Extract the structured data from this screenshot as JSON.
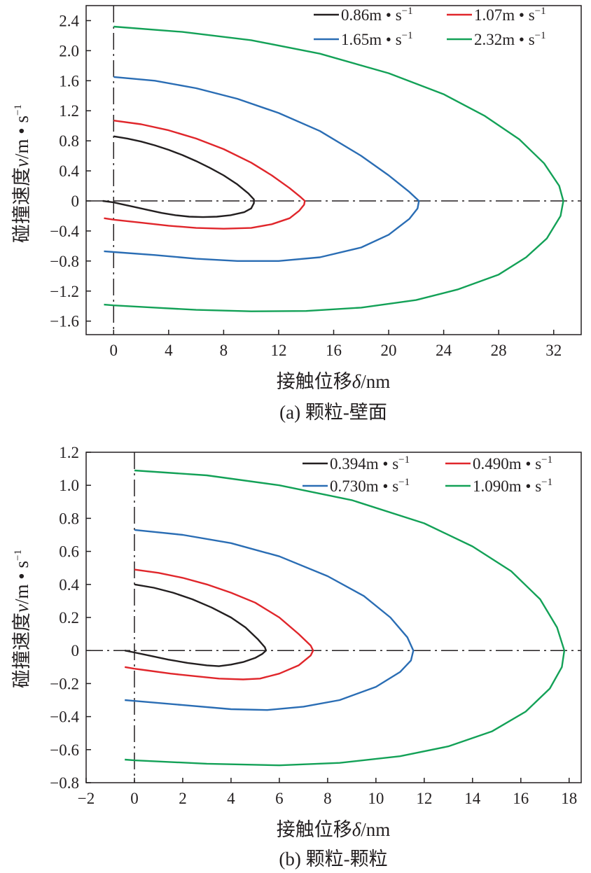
{
  "figure": {
    "colors": {
      "black": "#231f20",
      "red": "#e0262b",
      "blue": "#2a6db4",
      "green": "#13a157",
      "axis": "#231f20"
    }
  },
  "chart_data": [
    {
      "id": "a",
      "type": "line",
      "title": "(a) 颗粒-壁面",
      "xlabel_text": "接触位移",
      "xlabel_symbol": "δ",
      "xlabel_unit": "/nm",
      "ylabel_text": "碰撞速度",
      "ylabel_symbol": "v",
      "ylabel_unit": "/m • s",
      "ylabel_exp": "−1",
      "xlim": [
        -2,
        34
      ],
      "ylim": [
        -1.78,
        2.6
      ],
      "x_ticks": [
        0,
        4,
        8,
        12,
        16,
        20,
        24,
        28,
        32
      ],
      "x_tick_labels": [
        "0",
        "4",
        "8",
        "12",
        "16",
        "20",
        "24",
        "28",
        "32"
      ],
      "y_ticks": [
        2.4,
        2.0,
        1.6,
        1.2,
        0.8,
        0.4,
        0,
        -0.4,
        -0.8,
        -1.2,
        -1.6
      ],
      "y_tick_labels": [
        "2.4",
        "2.0",
        "1.6",
        "1.2",
        "0.8",
        "0.4",
        "0",
        "−0.4",
        "−0.8",
        "−1.2",
        "−1.6"
      ],
      "legend_position": "top-right",
      "legend_unit": "m • s",
      "legend_exp": "−1",
      "series": [
        {
          "name": "0.86",
          "color": "#231f20",
          "x": [
            0,
            1,
            2,
            3,
            4,
            5,
            6,
            7,
            8,
            9,
            9.8,
            10.2,
            10.2,
            10,
            9.5,
            8.5,
            7.5,
            6.5,
            5.5,
            4.5,
            3.5,
            2.5,
            1.5,
            0.5,
            0,
            -0.8
          ],
          "y": [
            0.86,
            0.83,
            0.79,
            0.74,
            0.68,
            0.61,
            0.53,
            0.44,
            0.34,
            0.22,
            0.1,
            0.02,
            -0.03,
            -0.1,
            -0.15,
            -0.19,
            -0.21,
            -0.215,
            -0.21,
            -0.19,
            -0.16,
            -0.12,
            -0.08,
            -0.04,
            -0.02,
            0
          ]
        },
        {
          "name": "1.07",
          "color": "#e0262b",
          "x": [
            0,
            2,
            4,
            6,
            8,
            10,
            11.5,
            12.8,
            13.6,
            13.9,
            13.85,
            13.5,
            12.8,
            11.5,
            10,
            8,
            6,
            4,
            2,
            0,
            -0.7
          ],
          "y": [
            1.07,
            1.02,
            0.94,
            0.83,
            0.69,
            0.51,
            0.34,
            0.17,
            0.05,
            0,
            -0.05,
            -0.13,
            -0.23,
            -0.31,
            -0.36,
            -0.37,
            -0.36,
            -0.33,
            -0.29,
            -0.25,
            -0.23
          ]
        },
        {
          "name": "1.65",
          "color": "#2a6db4",
          "x": [
            0,
            3,
            6,
            9,
            12,
            15,
            18,
            20,
            21.5,
            22.2,
            22.1,
            21.5,
            20,
            18,
            15,
            12,
            9,
            6,
            3,
            0,
            -0.7
          ],
          "y": [
            1.65,
            1.6,
            1.5,
            1.36,
            1.17,
            0.93,
            0.6,
            0.34,
            0.12,
            0,
            -0.1,
            -0.24,
            -0.45,
            -0.62,
            -0.75,
            -0.8,
            -0.8,
            -0.77,
            -0.72,
            -0.68,
            -0.67
          ]
        },
        {
          "name": "2.32",
          "color": "#13a157",
          "x": [
            0,
            5,
            10,
            15,
            20,
            24,
            27,
            29.5,
            31.3,
            32.4,
            32.7,
            32.5,
            31.5,
            30,
            28,
            25,
            22,
            18,
            14,
            10,
            6,
            3,
            0,
            -0.7
          ],
          "y": [
            2.32,
            2.25,
            2.14,
            1.96,
            1.7,
            1.42,
            1.13,
            0.82,
            0.5,
            0.2,
            0,
            -0.2,
            -0.5,
            -0.75,
            -0.98,
            -1.18,
            -1.32,
            -1.42,
            -1.465,
            -1.47,
            -1.45,
            -1.42,
            -1.39,
            -1.38
          ]
        }
      ]
    },
    {
      "id": "b",
      "type": "line",
      "title": "(b) 颗粒-颗粒",
      "xlabel_text": "接触位移",
      "xlabel_symbol": "δ",
      "xlabel_unit": "/nm",
      "ylabel_text": "碰撞速度",
      "ylabel_symbol": "v",
      "ylabel_unit": "/m • s",
      "ylabel_exp": "−1",
      "xlim": [
        -2,
        18.5
      ],
      "ylim": [
        -0.8,
        1.2
      ],
      "x_ticks": [
        -2,
        0,
        2,
        4,
        6,
        8,
        10,
        12,
        14,
        16,
        18
      ],
      "x_tick_labels": [
        "−2",
        "0",
        "2",
        "4",
        "6",
        "8",
        "10",
        "12",
        "14",
        "16",
        "18"
      ],
      "y_ticks": [
        1.2,
        1.0,
        0.8,
        0.6,
        0.4,
        0.2,
        0,
        -0.2,
        -0.4,
        -0.6,
        -0.8
      ],
      "y_tick_labels": [
        "1.2",
        "1.0",
        "0.8",
        "0.6",
        "0.4",
        "0.2",
        "0",
        "−0.2",
        "−0.4",
        "−0.6",
        "−0.8"
      ],
      "legend_position": "top-right",
      "legend_unit": "m • s",
      "legend_exp": "−1",
      "series": [
        {
          "name": "0.394",
          "color": "#231f20",
          "x": [
            0,
            0.8,
            1.6,
            2.4,
            3.2,
            4,
            4.6,
            5.1,
            5.4,
            5.45,
            5.3,
            5,
            4.5,
            4,
            3.5,
            3,
            2.2,
            1.4,
            0.6,
            0,
            -0.4
          ],
          "y": [
            0.4,
            0.38,
            0.35,
            0.31,
            0.26,
            0.2,
            0.14,
            0.07,
            0.02,
            0,
            -0.02,
            -0.045,
            -0.07,
            -0.085,
            -0.095,
            -0.09,
            -0.075,
            -0.055,
            -0.03,
            -0.012,
            0
          ]
        },
        {
          "name": "0.490",
          "color": "#e0262b",
          "x": [
            0,
            1,
            2,
            3,
            4,
            5,
            6,
            6.8,
            7.3,
            7.4,
            7.3,
            6.8,
            6,
            5.2,
            4.5,
            3.5,
            2.5,
            1.5,
            0.5,
            0,
            -0.4
          ],
          "y": [
            0.49,
            0.47,
            0.44,
            0.4,
            0.35,
            0.29,
            0.2,
            0.1,
            0.03,
            0,
            -0.03,
            -0.09,
            -0.14,
            -0.17,
            -0.175,
            -0.17,
            -0.155,
            -0.14,
            -0.12,
            -0.11,
            -0.1
          ]
        },
        {
          "name": "0.730",
          "color": "#2a6db4",
          "x": [
            0,
            2,
            4,
            6,
            8,
            9.5,
            10.6,
            11.3,
            11.55,
            11.45,
            11,
            10,
            8.5,
            7,
            5.5,
            4,
            2,
            0,
            -0.4
          ],
          "y": [
            0.73,
            0.7,
            0.65,
            0.57,
            0.45,
            0.33,
            0.2,
            0.08,
            0,
            -0.06,
            -0.13,
            -0.22,
            -0.3,
            -0.34,
            -0.36,
            -0.355,
            -0.33,
            -0.305,
            -0.3
          ]
        },
        {
          "name": "1.090",
          "color": "#13a157",
          "x": [
            0,
            3,
            6,
            9,
            12,
            14,
            15.6,
            16.8,
            17.5,
            17.8,
            17.7,
            17.2,
            16.2,
            14.8,
            13,
            11,
            8.5,
            6,
            3,
            0,
            -0.4
          ],
          "y": [
            1.09,
            1.06,
            1.0,
            0.91,
            0.77,
            0.63,
            0.48,
            0.31,
            0.14,
            0,
            -0.1,
            -0.23,
            -0.37,
            -0.49,
            -0.58,
            -0.64,
            -0.68,
            -0.695,
            -0.685,
            -0.665,
            -0.66
          ]
        }
      ]
    }
  ]
}
